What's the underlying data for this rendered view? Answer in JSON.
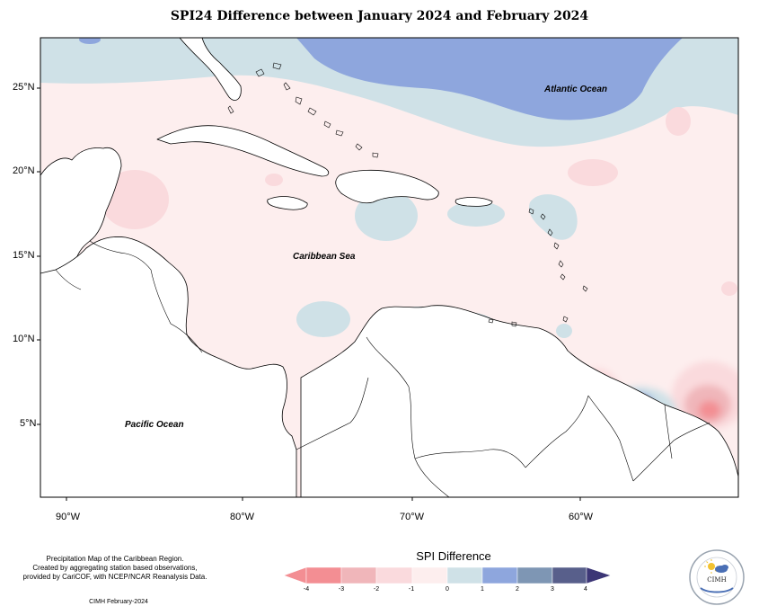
{
  "title": "SPI24 Difference between January 2024 and February 2024",
  "lat_ticks": [
    "25°N",
    "20°N",
    "15°N",
    "10°N",
    "5°N"
  ],
  "lon_ticks": [
    "90°W",
    "80°W",
    "70°W",
    "60°W"
  ],
  "labels": {
    "atlantic": "Atlantic Ocean",
    "caribbean": "Caribbean Sea",
    "pacific": "Pacific Ocean"
  },
  "credit": {
    "line1": "Precipitation Map of the Caribbean Region.",
    "line2": "Created by aggregating station based observations,",
    "line3": "provided by CariCOF, with NCEP/NCAR Reanalysis Data.",
    "stamp": "CIMH February-2024"
  },
  "legend": {
    "title": "SPI Difference",
    "ticks": [
      "-4",
      "-3",
      "-2",
      "-1",
      "0",
      "1",
      "2",
      "3",
      "4"
    ],
    "colors": [
      "#f38e93",
      "#f0b6ba",
      "#fadadd",
      "#fdeeee",
      "#cfe1e7",
      "#8ea6dd",
      "#7e96b4",
      "#585f8b"
    ]
  },
  "logo": {
    "text": "CIMH"
  }
}
